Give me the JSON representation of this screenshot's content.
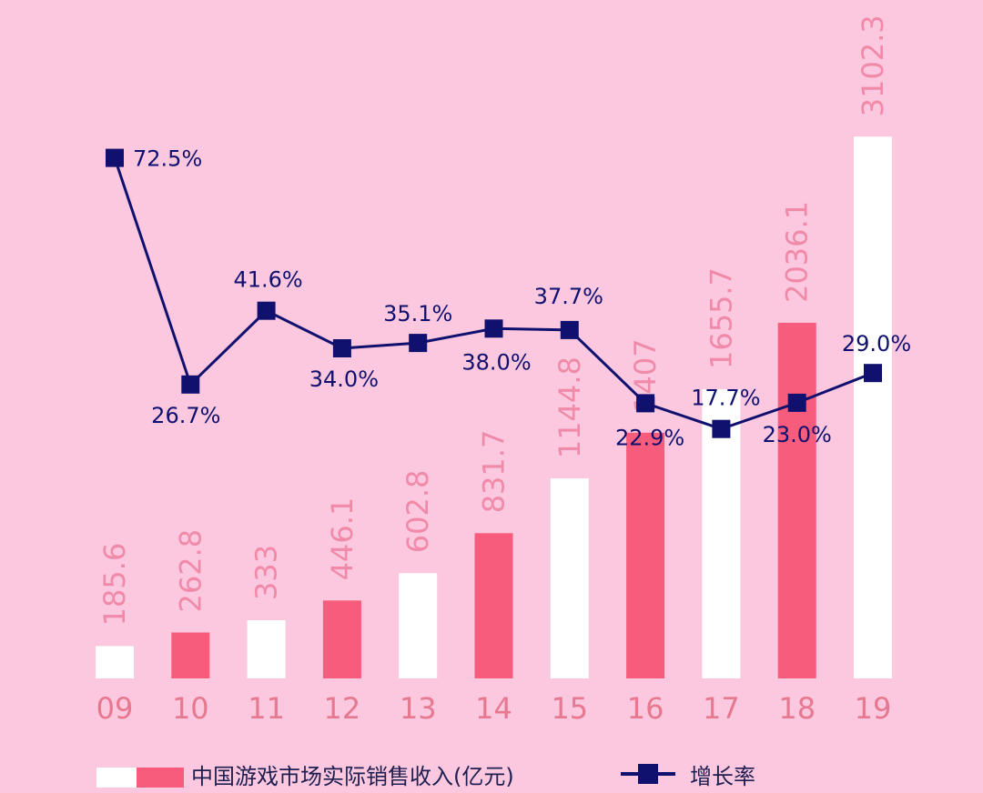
{
  "colors": {
    "background": "#fbc8df",
    "bar_white": "#ffffff",
    "bar_pink": "#f85c7c",
    "value_label": "#f08aa8",
    "line": "#10106e",
    "category_label": "#e6788f",
    "legend_text": "#1e1e50"
  },
  "chart_data": {
    "type": "bar",
    "categories": [
      "09",
      "10",
      "11",
      "12",
      "13",
      "14",
      "15",
      "16",
      "17",
      "18",
      "19"
    ],
    "series": [
      {
        "name": "中国游戏市场实际销售收入(亿元)",
        "type": "bar",
        "values": [
          185.6,
          262.8,
          333,
          446.1,
          602.8,
          831.7,
          1144.8,
          1407,
          1655.7,
          2036.1,
          3102.3
        ],
        "value_labels": [
          "185.6",
          "262.8",
          "333",
          "446.1",
          "602.8",
          "831.7",
          "1144.8",
          "1407",
          "1655.7",
          "2036.1",
          "3102.3"
        ],
        "bar_colors": [
          "white",
          "pink",
          "white",
          "pink",
          "white",
          "pink",
          "white",
          "pink",
          "white",
          "pink",
          "white"
        ]
      },
      {
        "name": "增长率",
        "type": "line",
        "marker": "square",
        "values": [
          72.5,
          26.7,
          41.6,
          34.0,
          35.1,
          38.0,
          37.7,
          22.9,
          17.7,
          23.0,
          29.0
        ],
        "value_labels": [
          "72.5%",
          "26.7%",
          "41.6%",
          "34.0%",
          "35.1%",
          "38.0%",
          "37.7%",
          "22.9%",
          "17.7%",
          "23.0%",
          "29.0%"
        ]
      }
    ],
    "ylim_bar": [
      0,
      3400
    ],
    "ylim_line": [
      0,
      100
    ],
    "grid": false,
    "legend_position": "bottom"
  }
}
